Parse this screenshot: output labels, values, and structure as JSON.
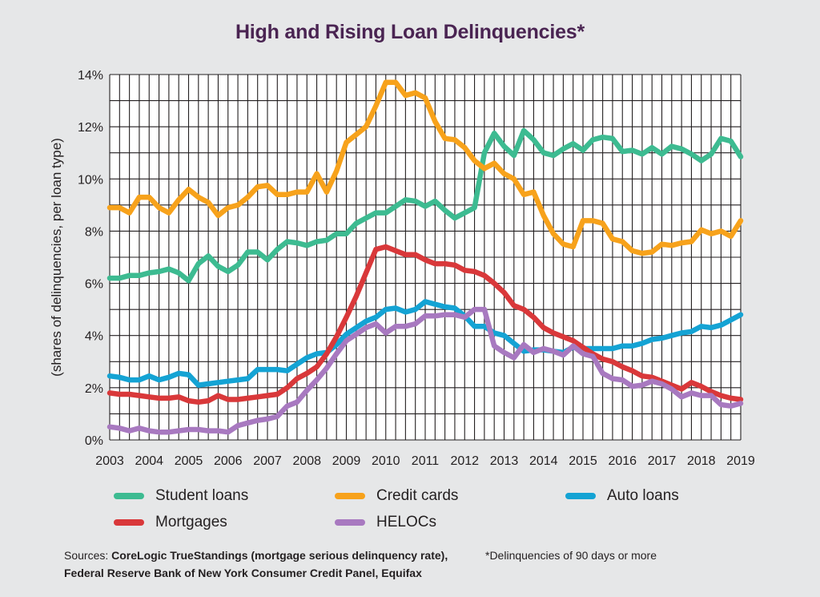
{
  "title": "High and Rising Loan Delinquencies*",
  "sources_lead": "Sources:",
  "sources_line1": "CoreLogic TrueStandings (mortgage serious delinquency rate),",
  "sources_line2": "Federal Reserve Bank of New York Consumer Credit Panel, Equifax",
  "footnote": "*Delinquencies of 90 days or more",
  "colors": {
    "student": "#3dbb91",
    "credit": "#f7a21b",
    "auto": "#14a3d4",
    "mortgage": "#d9383a",
    "heloc": "#a879c0",
    "grid": "#231f20",
    "plot_bg": "#ffffff"
  },
  "chart_data": {
    "type": "line",
    "title": "High and Rising Loan Delinquencies*",
    "xlabel": "",
    "ylabel": "(shares of delinquencies, per loan type)",
    "xlim": [
      2003,
      2019
    ],
    "ylim": [
      0,
      14
    ],
    "x_ticks": [
      "2003",
      "2004",
      "2005",
      "2006",
      "2007",
      "2008",
      "2009",
      "2010",
      "2011",
      "2012",
      "2013",
      "2014",
      "2015",
      "2016",
      "2017",
      "2018",
      "2019"
    ],
    "y_ticks": [
      "0%",
      "2%",
      "4%",
      "6%",
      "8%",
      "10%",
      "12%",
      "14%"
    ],
    "grid": true,
    "legend_position": "bottom",
    "series": [
      {
        "name": "Student loans",
        "color_key": "student",
        "x": [
          2003,
          2003.25,
          2003.5,
          2003.75,
          2004,
          2004.25,
          2004.5,
          2004.75,
          2005,
          2005.25,
          2005.5,
          2005.75,
          2006,
          2006.25,
          2006.5,
          2006.75,
          2007,
          2007.25,
          2007.5,
          2007.75,
          2008,
          2008.25,
          2008.5,
          2008.75,
          2009,
          2009.25,
          2009.5,
          2009.75,
          2010,
          2010.25,
          2010.5,
          2010.75,
          2011,
          2011.25,
          2011.5,
          2011.75,
          2012,
          2012.25,
          2012.5,
          2012.75,
          2013,
          2013.25,
          2013.5,
          2013.75,
          2014,
          2014.25,
          2014.5,
          2014.75,
          2015,
          2015.25,
          2015.5,
          2015.75,
          2016,
          2016.25,
          2016.5,
          2016.75,
          2017,
          2017.25,
          2017.5,
          2017.75,
          2018,
          2018.25,
          2018.5,
          2018.75,
          2019
        ],
        "y": [
          6.2,
          6.2,
          6.3,
          6.3,
          6.4,
          6.45,
          6.55,
          6.4,
          6.1,
          6.75,
          7.05,
          6.65,
          6.45,
          6.7,
          7.2,
          7.2,
          6.9,
          7.3,
          7.6,
          7.55,
          7.45,
          7.6,
          7.65,
          7.9,
          7.9,
          8.3,
          8.5,
          8.7,
          8.7,
          8.95,
          9.2,
          9.15,
          8.95,
          9.15,
          8.8,
          8.5,
          8.7,
          8.9,
          11.0,
          11.75,
          11.25,
          10.9,
          11.85,
          11.5,
          11.0,
          10.9,
          11.15,
          11.35,
          11.1,
          11.5,
          11.6,
          11.55,
          11.05,
          11.1,
          10.95,
          11.2,
          10.95,
          11.25,
          11.15,
          10.95,
          10.7,
          10.95,
          11.55,
          11.45,
          10.85
        ]
      },
      {
        "name": "Credit cards",
        "color_key": "credit",
        "x": [
          2003,
          2003.25,
          2003.5,
          2003.75,
          2004,
          2004.25,
          2004.5,
          2004.75,
          2005,
          2005.25,
          2005.5,
          2005.75,
          2006,
          2006.25,
          2006.5,
          2006.75,
          2007,
          2007.25,
          2007.5,
          2007.75,
          2008,
          2008.25,
          2008.5,
          2008.75,
          2009,
          2009.25,
          2009.5,
          2009.75,
          2010,
          2010.25,
          2010.5,
          2010.75,
          2011,
          2011.25,
          2011.5,
          2011.75,
          2012,
          2012.25,
          2012.5,
          2012.75,
          2013,
          2013.25,
          2013.5,
          2013.75,
          2014,
          2014.25,
          2014.5,
          2014.75,
          2015,
          2015.25,
          2015.5,
          2015.75,
          2016,
          2016.25,
          2016.5,
          2016.75,
          2017,
          2017.25,
          2017.5,
          2017.75,
          2018,
          2018.25,
          2018.5,
          2018.75,
          2019
        ],
        "y": [
          8.9,
          8.9,
          8.7,
          9.3,
          9.3,
          8.9,
          8.7,
          9.2,
          9.6,
          9.3,
          9.1,
          8.6,
          8.9,
          9.0,
          9.3,
          9.7,
          9.75,
          9.4,
          9.4,
          9.5,
          9.5,
          10.2,
          9.5,
          10.3,
          11.4,
          11.7,
          12.0,
          12.8,
          13.7,
          13.7,
          13.2,
          13.3,
          13.1,
          12.2,
          11.55,
          11.5,
          11.2,
          10.7,
          10.4,
          10.6,
          10.2,
          10.0,
          9.4,
          9.5,
          8.6,
          7.9,
          7.5,
          7.4,
          8.4,
          8.4,
          8.3,
          7.7,
          7.6,
          7.25,
          7.15,
          7.2,
          7.5,
          7.45,
          7.55,
          7.6,
          8.05,
          7.9,
          8.0,
          7.8,
          8.4
        ]
      },
      {
        "name": "Auto loans",
        "color_key": "auto",
        "x": [
          2003,
          2003.25,
          2003.5,
          2003.75,
          2004,
          2004.25,
          2004.5,
          2004.75,
          2005,
          2005.25,
          2005.5,
          2005.75,
          2006,
          2006.25,
          2006.5,
          2006.75,
          2007,
          2007.25,
          2007.5,
          2007.75,
          2008,
          2008.25,
          2008.5,
          2008.75,
          2009,
          2009.25,
          2009.5,
          2009.75,
          2010,
          2010.25,
          2010.5,
          2010.75,
          2011,
          2011.25,
          2011.5,
          2011.75,
          2012,
          2012.25,
          2012.5,
          2012.75,
          2013,
          2013.25,
          2013.5,
          2013.75,
          2014,
          2014.25,
          2014.5,
          2014.75,
          2015,
          2015.25,
          2015.5,
          2015.75,
          2016,
          2016.25,
          2016.5,
          2016.75,
          2017,
          2017.25,
          2017.5,
          2017.75,
          2018,
          2018.25,
          2018.5,
          2018.75,
          2019
        ],
        "y": [
          2.45,
          2.4,
          2.3,
          2.3,
          2.45,
          2.3,
          2.4,
          2.55,
          2.5,
          2.1,
          2.15,
          2.2,
          2.25,
          2.3,
          2.35,
          2.7,
          2.7,
          2.7,
          2.65,
          2.9,
          3.15,
          3.3,
          3.35,
          3.65,
          4.05,
          4.3,
          4.55,
          4.7,
          5.0,
          5.05,
          4.9,
          5.0,
          5.3,
          5.2,
          5.1,
          5.05,
          4.75,
          4.35,
          4.35,
          4.1,
          4.0,
          3.7,
          3.4,
          3.45,
          3.45,
          3.4,
          3.35,
          3.55,
          3.5,
          3.5,
          3.5,
          3.5,
          3.6,
          3.6,
          3.7,
          3.85,
          3.9,
          4.0,
          4.1,
          4.15,
          4.35,
          4.3,
          4.4,
          4.6,
          4.8
        ]
      },
      {
        "name": "Mortgages",
        "color_key": "mortgage",
        "x": [
          2003,
          2003.25,
          2003.5,
          2003.75,
          2004,
          2004.25,
          2004.5,
          2004.75,
          2005,
          2005.25,
          2005.5,
          2005.75,
          2006,
          2006.25,
          2006.5,
          2006.75,
          2007,
          2007.25,
          2007.5,
          2007.75,
          2008,
          2008.25,
          2008.5,
          2008.75,
          2009,
          2009.25,
          2009.5,
          2009.75,
          2010,
          2010.25,
          2010.5,
          2010.75,
          2011,
          2011.25,
          2011.5,
          2011.75,
          2012,
          2012.25,
          2012.5,
          2012.75,
          2013,
          2013.25,
          2013.5,
          2013.75,
          2014,
          2014.25,
          2014.5,
          2014.75,
          2015,
          2015.25,
          2015.5,
          2015.75,
          2016,
          2016.25,
          2016.5,
          2016.75,
          2017,
          2017.25,
          2017.5,
          2017.75,
          2018,
          2018.25,
          2018.5,
          2018.75,
          2019
        ],
        "y": [
          1.8,
          1.75,
          1.75,
          1.7,
          1.65,
          1.6,
          1.6,
          1.65,
          1.5,
          1.45,
          1.5,
          1.7,
          1.55,
          1.55,
          1.6,
          1.65,
          1.7,
          1.75,
          2.0,
          2.35,
          2.55,
          2.8,
          3.3,
          3.95,
          4.7,
          5.5,
          6.4,
          7.3,
          7.4,
          7.25,
          7.1,
          7.1,
          6.9,
          6.75,
          6.75,
          6.7,
          6.5,
          6.45,
          6.3,
          6.0,
          5.65,
          5.15,
          5.0,
          4.7,
          4.3,
          4.1,
          3.95,
          3.8,
          3.55,
          3.3,
          3.1,
          3.0,
          2.8,
          2.65,
          2.45,
          2.4,
          2.25,
          2.1,
          1.95,
          2.2,
          2.05,
          1.85,
          1.7,
          1.6,
          1.55
        ]
      },
      {
        "name": "HELOCs",
        "color_key": "heloc",
        "x": [
          2003,
          2003.25,
          2003.5,
          2003.75,
          2004,
          2004.25,
          2004.5,
          2004.75,
          2005,
          2005.25,
          2005.5,
          2005.75,
          2006,
          2006.25,
          2006.5,
          2006.75,
          2007,
          2007.25,
          2007.5,
          2007.75,
          2008,
          2008.25,
          2008.5,
          2008.75,
          2009,
          2009.25,
          2009.5,
          2009.75,
          2010,
          2010.25,
          2010.5,
          2010.75,
          2011,
          2011.25,
          2011.5,
          2011.75,
          2012,
          2012.25,
          2012.5,
          2012.75,
          2013,
          2013.25,
          2013.5,
          2013.75,
          2014,
          2014.25,
          2014.5,
          2014.75,
          2015,
          2015.25,
          2015.5,
          2015.75,
          2016,
          2016.25,
          2016.5,
          2016.75,
          2017,
          2017.25,
          2017.5,
          2017.75,
          2018,
          2018.25,
          2018.5,
          2018.75,
          2019
        ],
        "y": [
          0.5,
          0.45,
          0.35,
          0.45,
          0.35,
          0.3,
          0.3,
          0.35,
          0.4,
          0.4,
          0.35,
          0.35,
          0.3,
          0.55,
          0.65,
          0.75,
          0.8,
          0.9,
          1.3,
          1.45,
          1.9,
          2.3,
          2.75,
          3.3,
          3.8,
          4.05,
          4.3,
          4.45,
          4.1,
          4.35,
          4.35,
          4.45,
          4.75,
          4.75,
          4.8,
          4.8,
          4.7,
          5.0,
          5.0,
          3.6,
          3.35,
          3.15,
          3.65,
          3.35,
          3.5,
          3.4,
          3.25,
          3.6,
          3.3,
          3.2,
          2.55,
          2.35,
          2.3,
          2.05,
          2.1,
          2.25,
          2.15,
          1.95,
          1.65,
          1.8,
          1.7,
          1.7,
          1.35,
          1.3,
          1.4
        ]
      }
    ]
  },
  "legend": [
    {
      "label": "Student loans",
      "color_key": "student"
    },
    {
      "label": "Credit cards",
      "color_key": "credit"
    },
    {
      "label": "Auto loans",
      "color_key": "auto"
    },
    {
      "label": "Mortgages",
      "color_key": "mortgage"
    },
    {
      "label": "HELOCs",
      "color_key": "heloc"
    }
  ]
}
